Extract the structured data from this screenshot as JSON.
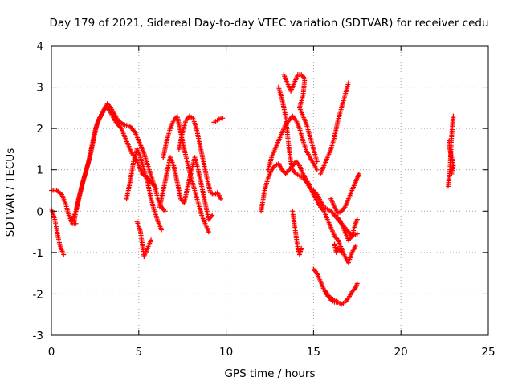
{
  "chart_data": {
    "type": "scatter",
    "title": "Day 179 of 2021, Sidereal Day-to-day VTEC variation (SDTVAR) for receiver cedu",
    "xlabel": "GPS time / hours",
    "ylabel": "SDTVAR / TECUs",
    "xlim": [
      0,
      25
    ],
    "ylim": [
      -3,
      4
    ],
    "xticks": [
      0,
      5,
      10,
      15,
      20,
      25
    ],
    "yticks": [
      -3,
      -2,
      -1,
      0,
      1,
      2,
      3,
      4
    ],
    "grid": true,
    "marker": "+",
    "color": "#ff0000",
    "tracks": [
      [
        [
          0.0,
          0.5
        ],
        [
          0.3,
          0.5
        ],
        [
          0.6,
          0.4
        ],
        [
          0.8,
          0.2
        ],
        [
          1.0,
          -0.1
        ],
        [
          1.2,
          -0.3
        ],
        [
          1.4,
          -0.3
        ]
      ],
      [
        [
          0.0,
          0.05
        ],
        [
          0.2,
          -0.2
        ],
        [
          0.35,
          -0.55
        ],
        [
          0.5,
          -0.85
        ],
        [
          0.7,
          -1.05
        ]
      ],
      [
        [
          1.2,
          -0.2
        ],
        [
          1.4,
          0.0
        ],
        [
          1.6,
          0.35
        ],
        [
          1.8,
          0.7
        ],
        [
          2.0,
          1.0
        ],
        [
          2.2,
          1.3
        ],
        [
          2.4,
          1.7
        ],
        [
          2.6,
          2.1
        ],
        [
          2.8,
          2.3
        ],
        [
          3.0,
          2.45
        ],
        [
          3.2,
          2.6
        ],
        [
          3.4,
          2.5
        ],
        [
          3.6,
          2.35
        ],
        [
          3.8,
          2.2
        ],
        [
          4.1,
          2.1
        ],
        [
          4.5,
          2.05
        ],
        [
          4.8,
          1.9
        ],
        [
          5.0,
          1.7
        ],
        [
          5.3,
          1.4
        ],
        [
          5.6,
          1.0
        ],
        [
          5.9,
          0.6
        ],
        [
          6.1,
          0.3
        ],
        [
          6.3,
          0.1
        ],
        [
          6.5,
          0.0
        ]
      ],
      [
        [
          1.3,
          -0.25
        ],
        [
          1.5,
          0.2
        ],
        [
          1.7,
          0.55
        ],
        [
          1.9,
          0.85
        ],
        [
          2.1,
          1.15
        ],
        [
          2.3,
          1.55
        ],
        [
          2.5,
          1.95
        ],
        [
          2.7,
          2.2
        ],
        [
          2.9,
          2.35
        ],
        [
          3.1,
          2.5
        ],
        [
          3.3,
          2.45
        ],
        [
          3.5,
          2.3
        ],
        [
          3.7,
          2.15
        ],
        [
          4.0,
          2.0
        ],
        [
          4.2,
          1.8
        ],
        [
          4.4,
          1.6
        ],
        [
          4.6,
          1.4
        ],
        [
          4.8,
          1.3
        ],
        [
          5.0,
          1.1
        ],
        [
          5.2,
          0.9
        ],
        [
          5.5,
          0.8
        ],
        [
          5.8,
          0.65
        ],
        [
          6.0,
          0.55
        ]
      ],
      [
        [
          4.3,
          0.3
        ],
        [
          4.5,
          0.7
        ],
        [
          4.7,
          1.2
        ],
        [
          4.9,
          1.5
        ],
        [
          5.1,
          1.3
        ],
        [
          5.3,
          1.0
        ],
        [
          5.5,
          0.7
        ],
        [
          5.7,
          0.3
        ],
        [
          5.9,
          0.0
        ],
        [
          6.1,
          -0.25
        ],
        [
          6.3,
          -0.45
        ]
      ],
      [
        [
          4.9,
          -0.25
        ],
        [
          5.1,
          -0.5
        ],
        [
          5.2,
          -0.8
        ],
        [
          5.3,
          -1.1
        ],
        [
          5.5,
          -0.9
        ],
        [
          5.7,
          -0.7
        ]
      ],
      [
        [
          6.2,
          0.1
        ],
        [
          6.4,
          0.5
        ],
        [
          6.6,
          0.9
        ],
        [
          6.8,
          1.3
        ],
        [
          7.0,
          1.1
        ],
        [
          7.2,
          0.7
        ],
        [
          7.4,
          0.3
        ],
        [
          7.6,
          0.2
        ],
        [
          7.8,
          0.6
        ],
        [
          8.0,
          0.95
        ],
        [
          8.2,
          1.3
        ],
        [
          8.4,
          1.0
        ],
        [
          8.6,
          0.6
        ],
        [
          8.8,
          0.2
        ],
        [
          9.0,
          -0.2
        ],
        [
          9.2,
          -0.1
        ]
      ],
      [
        [
          6.4,
          1.3
        ],
        [
          6.6,
          1.7
        ],
        [
          6.8,
          2.0
        ],
        [
          7.0,
          2.2
        ],
        [
          7.2,
          2.3
        ],
        [
          7.4,
          1.9
        ],
        [
          7.6,
          1.5
        ],
        [
          7.8,
          1.15
        ],
        [
          8.0,
          0.8
        ],
        [
          8.2,
          0.5
        ],
        [
          8.4,
          0.2
        ],
        [
          8.6,
          -0.1
        ],
        [
          8.8,
          -0.3
        ],
        [
          9.0,
          -0.5
        ]
      ],
      [
        [
          7.3,
          1.5
        ],
        [
          7.5,
          1.9
        ],
        [
          7.7,
          2.2
        ],
        [
          7.9,
          2.3
        ],
        [
          8.1,
          2.25
        ],
        [
          8.3,
          2.0
        ],
        [
          8.5,
          1.6
        ],
        [
          8.7,
          1.2
        ],
        [
          8.9,
          0.8
        ],
        [
          9.1,
          0.45
        ],
        [
          9.3,
          0.4
        ],
        [
          9.5,
          0.45
        ],
        [
          9.7,
          0.3
        ]
      ],
      [
        [
          9.3,
          2.15
        ],
        [
          9.5,
          2.2
        ],
        [
          9.7,
          2.25
        ],
        [
          9.8,
          2.25
        ]
      ],
      [
        [
          12.0,
          0.0
        ],
        [
          12.2,
          0.5
        ],
        [
          12.4,
          0.8
        ],
        [
          12.6,
          1.0
        ],
        [
          12.8,
          1.1
        ],
        [
          13.0,
          1.15
        ],
        [
          13.2,
          1.0
        ],
        [
          13.4,
          0.9
        ],
        [
          13.6,
          1.0
        ],
        [
          13.8,
          1.1
        ],
        [
          14.0,
          1.2
        ],
        [
          14.2,
          1.1
        ],
        [
          14.4,
          0.9
        ],
        [
          14.6,
          0.75
        ],
        [
          14.8,
          0.6
        ],
        [
          15.0,
          0.4
        ],
        [
          15.2,
          0.25
        ],
        [
          15.4,
          0.1
        ],
        [
          15.6,
          0.0
        ],
        [
          15.8,
          -0.2
        ],
        [
          16.0,
          -0.4
        ],
        [
          16.2,
          -0.6
        ],
        [
          16.4,
          -0.7
        ],
        [
          16.6,
          -0.9
        ],
        [
          16.8,
          -1.1
        ],
        [
          17.0,
          -1.25
        ],
        [
          17.2,
          -1.0
        ],
        [
          17.4,
          -0.85
        ]
      ],
      [
        [
          12.4,
          1.0
        ],
        [
          12.6,
          1.3
        ],
        [
          12.8,
          1.5
        ],
        [
          13.0,
          1.7
        ],
        [
          13.2,
          1.9
        ],
        [
          13.4,
          2.1
        ],
        [
          13.6,
          2.2
        ],
        [
          13.8,
          2.3
        ],
        [
          14.0,
          2.2
        ],
        [
          14.2,
          2.0
        ],
        [
          14.4,
          1.7
        ],
        [
          14.6,
          1.45
        ],
        [
          14.8,
          1.3
        ],
        [
          15.0,
          1.15
        ],
        [
          15.2,
          1.0
        ]
      ],
      [
        [
          13.0,
          3.0
        ],
        [
          13.2,
          2.7
        ],
        [
          13.4,
          2.3
        ],
        [
          13.5,
          1.9
        ],
        [
          13.6,
          1.5
        ],
        [
          13.7,
          1.2
        ],
        [
          13.8,
          1.0
        ],
        [
          14.0,
          0.9
        ],
        [
          14.2,
          0.85
        ],
        [
          14.4,
          0.8
        ],
        [
          14.6,
          0.7
        ],
        [
          14.8,
          0.55
        ],
        [
          15.0,
          0.5
        ],
        [
          15.2,
          0.4
        ],
        [
          15.4,
          0.25
        ],
        [
          15.6,
          0.1
        ],
        [
          15.8,
          0.05
        ],
        [
          16.0,
          0.0
        ],
        [
          16.2,
          -0.1
        ],
        [
          16.4,
          -0.2
        ],
        [
          16.6,
          -0.3
        ],
        [
          16.8,
          -0.4
        ],
        [
          17.0,
          -0.5
        ],
        [
          17.2,
          -0.6
        ],
        [
          17.5,
          -0.55
        ]
      ],
      [
        [
          13.3,
          3.3
        ],
        [
          13.5,
          3.1
        ],
        [
          13.7,
          2.9
        ],
        [
          13.9,
          3.1
        ],
        [
          14.1,
          3.3
        ],
        [
          14.3,
          3.3
        ],
        [
          14.5,
          3.2
        ],
        [
          14.4,
          2.8
        ],
        [
          14.2,
          2.5
        ],
        [
          14.4,
          2.3
        ],
        [
          14.6,
          2.1
        ],
        [
          14.8,
          1.8
        ],
        [
          15.0,
          1.5
        ],
        [
          15.2,
          1.2
        ]
      ],
      [
        [
          13.8,
          0.0
        ],
        [
          13.9,
          -0.3
        ],
        [
          14.0,
          -0.6
        ],
        [
          14.1,
          -0.9
        ],
        [
          14.2,
          -1.05
        ],
        [
          14.3,
          -0.9
        ]
      ],
      [
        [
          15.0,
          -1.4
        ],
        [
          15.2,
          -1.5
        ],
        [
          15.4,
          -1.7
        ],
        [
          15.6,
          -1.9
        ],
        [
          15.8,
          -2.05
        ],
        [
          16.0,
          -2.1
        ],
        [
          16.2,
          -2.15
        ],
        [
          16.4,
          -2.2
        ],
        [
          16.6,
          -2.25
        ],
        [
          16.8,
          -2.2
        ],
        [
          17.0,
          -2.1
        ],
        [
          17.2,
          -1.95
        ],
        [
          17.4,
          -1.85
        ],
        [
          17.5,
          -1.75
        ]
      ],
      [
        [
          15.6,
          -1.9
        ],
        [
          15.8,
          -2.0
        ],
        [
          16.0,
          -2.15
        ],
        [
          16.2,
          -2.2
        ],
        [
          16.4,
          -2.2
        ]
      ],
      [
        [
          15.4,
          0.9
        ],
        [
          15.6,
          1.1
        ],
        [
          15.8,
          1.3
        ],
        [
          16.0,
          1.5
        ],
        [
          16.2,
          1.8
        ],
        [
          16.4,
          2.2
        ],
        [
          16.6,
          2.5
        ],
        [
          16.8,
          2.8
        ],
        [
          17.0,
          3.1
        ]
      ],
      [
        [
          16.0,
          0.3
        ],
        [
          16.2,
          0.1
        ],
        [
          16.4,
          -0.05
        ],
        [
          16.6,
          0.0
        ],
        [
          16.8,
          0.1
        ],
        [
          17.0,
          0.3
        ],
        [
          17.2,
          0.5
        ],
        [
          17.4,
          0.7
        ],
        [
          17.5,
          0.8
        ],
        [
          17.6,
          0.9
        ]
      ],
      [
        [
          16.4,
          -0.15
        ],
        [
          16.6,
          -0.3
        ],
        [
          16.8,
          -0.5
        ],
        [
          17.0,
          -0.7
        ],
        [
          17.2,
          -0.6
        ],
        [
          17.4,
          -0.3
        ],
        [
          17.5,
          -0.2
        ]
      ],
      [
        [
          16.2,
          -0.8
        ],
        [
          16.3,
          -1.0
        ],
        [
          16.4,
          -0.9
        ],
        [
          16.6,
          -1.0
        ]
      ],
      [
        [
          22.7,
          0.6
        ],
        [
          22.8,
          1.0
        ],
        [
          22.85,
          1.4
        ],
        [
          22.9,
          1.8
        ],
        [
          22.95,
          2.1
        ],
        [
          23.0,
          2.3
        ]
      ],
      [
        [
          22.75,
          1.7
        ],
        [
          22.8,
          1.5
        ],
        [
          22.9,
          1.3
        ],
        [
          23.0,
          1.1
        ],
        [
          22.9,
          0.9
        ]
      ]
    ]
  }
}
